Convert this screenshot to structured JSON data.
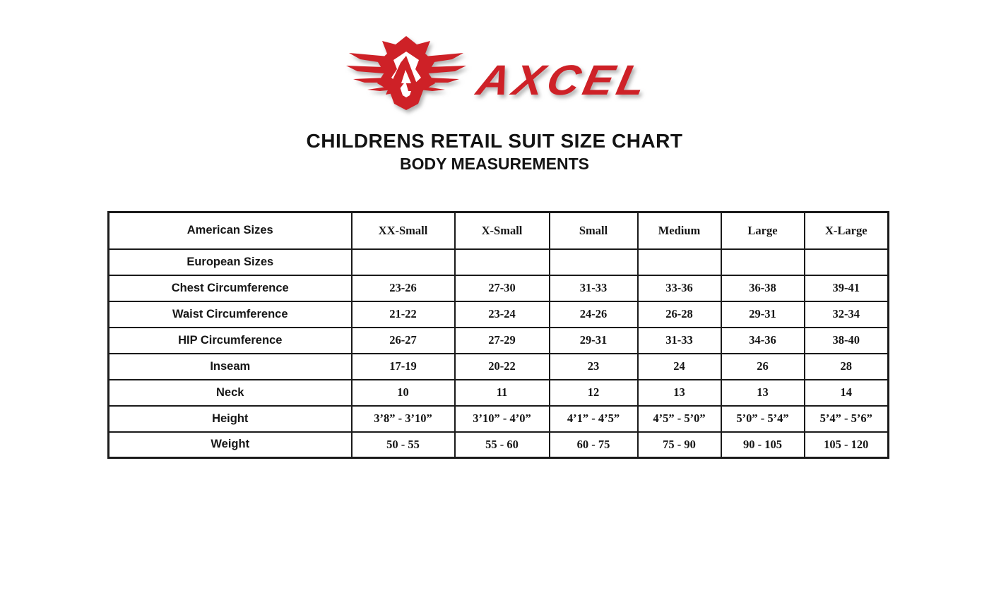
{
  "page": {
    "title": "CHILDRENS RETAIL SUIT SIZE CHART",
    "subtitle": "BODY MEASUREMENTS"
  },
  "logo": {
    "brand": "AXCEL",
    "emblem": "winged-crest-with-A",
    "red": "#ce2127"
  },
  "table": {
    "header_label": "American Sizes",
    "sizes": [
      "XX-Small",
      "X-Small",
      "Small",
      "Medium",
      "Large",
      "X-Large"
    ],
    "rows": [
      {
        "label": "European Sizes",
        "values": [
          "",
          "",
          "",
          "",
          "",
          ""
        ]
      },
      {
        "label": "Chest Circumference",
        "values": [
          "23-26",
          "27-30",
          "31-33",
          "33-36",
          "36-38",
          "39-41"
        ]
      },
      {
        "label": "Waist Circumference",
        "values": [
          "21-22",
          "23-24",
          "24-26",
          "26-28",
          "29-31",
          "32-34"
        ]
      },
      {
        "label": "HIP Circumference",
        "values": [
          "26-27",
          "27-29",
          "29-31",
          "31-33",
          "34-36",
          "38-40"
        ]
      },
      {
        "label": "Inseam",
        "values": [
          "17-19",
          "20-22",
          "23",
          "24",
          "26",
          "28"
        ]
      },
      {
        "label": "Neck",
        "values": [
          "10",
          "11",
          "12",
          "13",
          "13",
          "14"
        ]
      },
      {
        "label": "Height",
        "values": [
          "3’8” - 3’10”",
          "3’10” - 4’0”",
          "4’1” - 4’5”",
          "4’5” - 5’0”",
          "5’0” - 5’4”",
          "5’4” - 5’6”"
        ]
      },
      {
        "label": "Weight",
        "values": [
          "50 - 55",
          "55 - 60",
          "60 - 75",
          "75 - 90",
          "90 - 105",
          "105 - 120"
        ]
      }
    ]
  }
}
